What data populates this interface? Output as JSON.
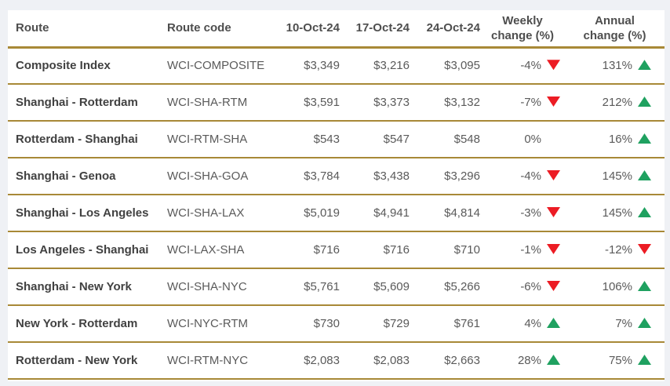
{
  "colors": {
    "gold": "#a88937",
    "red": "#ec1c24",
    "green": "#1fa160",
    "page_bg": "#eff1f5",
    "panel_bg": "#ffffff",
    "route_text": "#414141",
    "value_text": "#5a5a5a",
    "header_text": "#4e4e4e"
  },
  "headers": {
    "route": "Route",
    "route_code": "Route code",
    "date1": "10-Oct-24",
    "date2": "17-Oct-24",
    "date3": "24-Oct-24",
    "weekly_line1": "Weekly",
    "weekly_line2": "change (%)",
    "annual_line1": "Annual",
    "annual_line2": "change (%)"
  },
  "chart_data": {
    "type": "table",
    "columns": [
      "Route",
      "Route code",
      "10-Oct-24",
      "17-Oct-24",
      "24-Oct-24",
      "Weekly change (%)",
      "Annual change (%)"
    ],
    "rows": [
      {
        "route": "Composite Index",
        "route_code": "WCI-COMPOSITE",
        "rate_10_oct": "$3,349",
        "rate_17_oct": "$3,216",
        "rate_24_oct": "$3,095",
        "weekly_change": "-4%",
        "weekly_trend": "down",
        "annual_change": "131%",
        "annual_trend": "up"
      },
      {
        "route": "Shanghai - Rotterdam",
        "route_code": "WCI-SHA-RTM",
        "rate_10_oct": "$3,591",
        "rate_17_oct": "$3,373",
        "rate_24_oct": "$3,132",
        "weekly_change": "-7%",
        "weekly_trend": "down",
        "annual_change": "212%",
        "annual_trend": "up"
      },
      {
        "route": "Rotterdam - Shanghai",
        "route_code": "WCI-RTM-SHA",
        "rate_10_oct": "$543",
        "rate_17_oct": "$547",
        "rate_24_oct": "$548",
        "weekly_change": "0%",
        "weekly_trend": "none",
        "annual_change": "16%",
        "annual_trend": "up"
      },
      {
        "route": "Shanghai - Genoa",
        "route_code": "WCI-SHA-GOA",
        "rate_10_oct": "$3,784",
        "rate_17_oct": "$3,438",
        "rate_24_oct": "$3,296",
        "weekly_change": "-4%",
        "weekly_trend": "down",
        "annual_change": "145%",
        "annual_trend": "up"
      },
      {
        "route": "Shanghai - Los Angeles",
        "route_code": "WCI-SHA-LAX",
        "rate_10_oct": "$5,019",
        "rate_17_oct": "$4,941",
        "rate_24_oct": "$4,814",
        "weekly_change": "-3%",
        "weekly_trend": "down",
        "annual_change": "145%",
        "annual_trend": "up"
      },
      {
        "route": "Los Angeles - Shanghai",
        "route_code": "WCI-LAX-SHA",
        "rate_10_oct": "$716",
        "rate_17_oct": "$716",
        "rate_24_oct": "$710",
        "weekly_change": "-1%",
        "weekly_trend": "down",
        "annual_change": "-12%",
        "annual_trend": "down"
      },
      {
        "route": "Shanghai - New York",
        "route_code": "WCI-SHA-NYC",
        "rate_10_oct": "$5,761",
        "rate_17_oct": "$5,609",
        "rate_24_oct": "$5,266",
        "weekly_change": "-6%",
        "weekly_trend": "down",
        "annual_change": "106%",
        "annual_trend": "up"
      },
      {
        "route": "New York - Rotterdam",
        "route_code": "WCI-NYC-RTM",
        "rate_10_oct": "$730",
        "rate_17_oct": "$729",
        "rate_24_oct": "$761",
        "weekly_change": "4%",
        "weekly_trend": "up",
        "annual_change": "7%",
        "annual_trend": "up"
      },
      {
        "route": "Rotterdam - New York",
        "route_code": "WCI-RTM-NYC",
        "rate_10_oct": "$2,083",
        "rate_17_oct": "$2,083",
        "rate_24_oct": "$2,663",
        "weekly_change": "28%",
        "weekly_trend": "up",
        "annual_change": "75%",
        "annual_trend": "up"
      }
    ]
  }
}
